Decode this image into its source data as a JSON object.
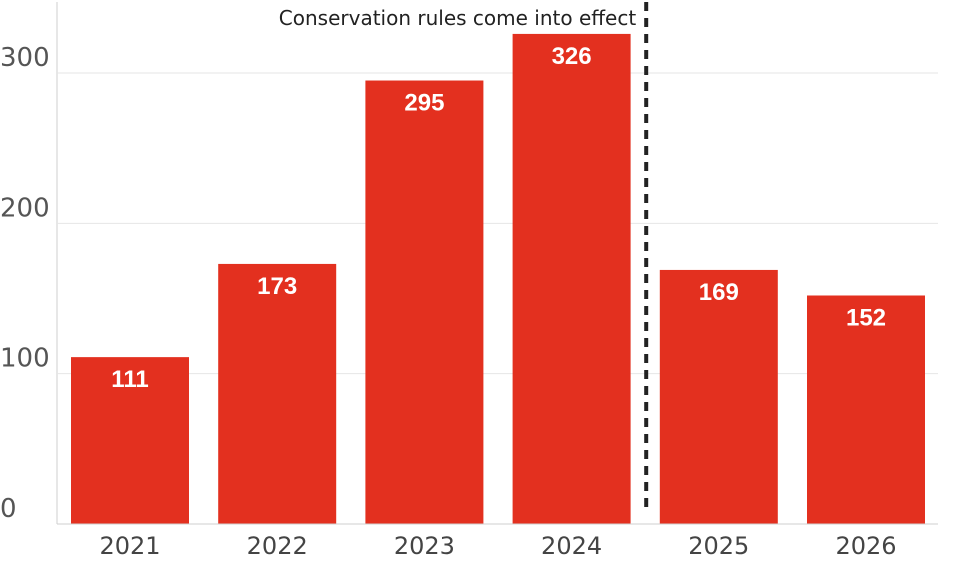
{
  "chart_data": {
    "type": "bar",
    "categories": [
      "2021",
      "2022",
      "2023",
      "2024",
      "2025",
      "2026"
    ],
    "values": [
      111,
      173,
      295,
      326,
      169,
      152
    ],
    "data_labels": [
      "111",
      "173",
      "295",
      "326",
      "169",
      "152"
    ],
    "yticks": [
      0,
      100,
      200,
      300
    ],
    "ytick_labels": [
      "0",
      "100",
      "200",
      "300"
    ],
    "ylim": [
      0,
      340
    ],
    "grid": true,
    "bar_color": "#e3301f",
    "marker_color": "#222222",
    "annotation": {
      "text": "Conservation rules come into effect",
      "between": [
        "2024",
        "2025"
      ]
    },
    "title": "",
    "xlabel": "",
    "ylabel": ""
  }
}
